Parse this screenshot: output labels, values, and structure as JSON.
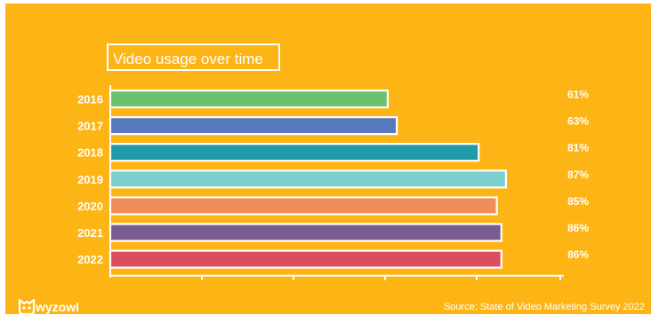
{
  "chart_data": {
    "type": "bar",
    "orientation": "horizontal",
    "title": "Video usage over time",
    "categories": [
      "2016",
      "2017",
      "2018",
      "2019",
      "2020",
      "2021",
      "2022"
    ],
    "values": [
      61,
      63,
      81,
      87,
      85,
      86,
      86
    ],
    "value_labels": [
      "61%",
      "63%",
      "81%",
      "87%",
      "85%",
      "86%",
      "86%"
    ],
    "bar_colors": [
      "#6CC070",
      "#5579BA",
      "#1E9AA8",
      "#7AD0CF",
      "#F08D59",
      "#7B5C8F",
      "#D94F60"
    ],
    "xlim": [
      0,
      88
    ],
    "grid": false
  },
  "colors": {
    "background": "#FDB515",
    "text": "#ffffff"
  },
  "brand": {
    "logo_text": "wyzowl",
    "logo_icon": "wyzowl-owl-icon"
  },
  "source": "Source: State of Video Marketing Survey 2022"
}
